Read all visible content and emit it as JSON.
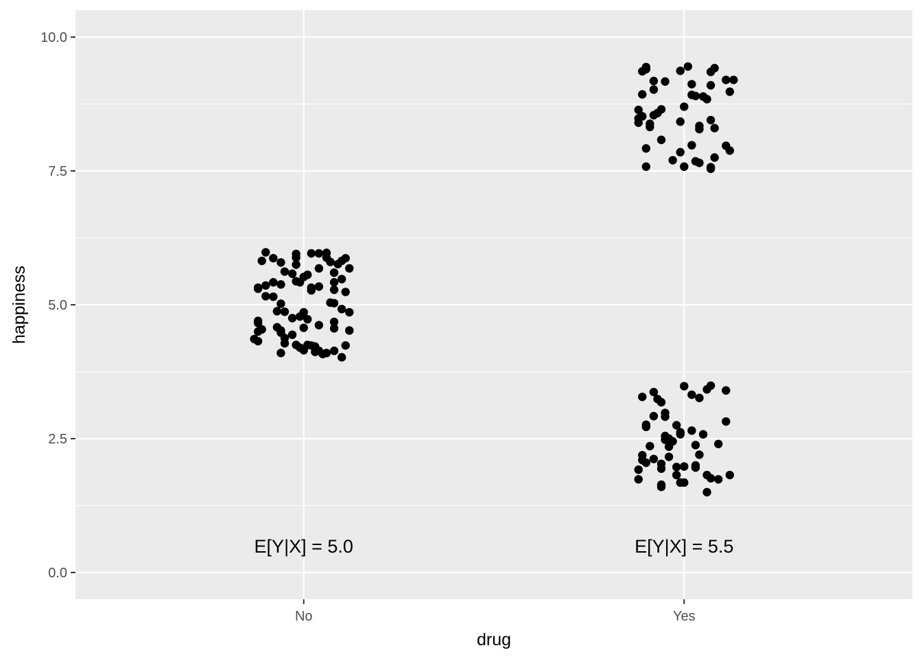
{
  "chart_data": {
    "type": "scatter",
    "title": "",
    "xlabel": "drug",
    "ylabel": "happiness",
    "categories": [
      "No",
      "Yes"
    ],
    "ylim": [
      -0.5,
      10.5
    ],
    "yticks": [
      {
        "value": 0,
        "label": "0.0"
      },
      {
        "value": 2.5,
        "label": "2.5"
      },
      {
        "value": 5,
        "label": "5.0"
      },
      {
        "value": 7.5,
        "label": "7.5"
      },
      {
        "value": 10,
        "label": "10.0"
      }
    ],
    "grid": true,
    "legend": "none",
    "colors": {
      "panel": "#ebebeb",
      "grid": "#ffffff",
      "points": "#000000"
    },
    "annotations": [
      {
        "category": "No",
        "y": 0.5,
        "text": "E[Y|X] = 5.0"
      },
      {
        "category": "Yes",
        "y": 0.5,
        "text": "E[Y|X] = 5.5"
      }
    ],
    "points": [
      {
        "category": "No",
        "y": 5.98,
        "x_jitter": -0.1
      },
      {
        "category": "No",
        "y": 5.87,
        "x_jitter": -0.08
      },
      {
        "category": "No",
        "y": 5.82,
        "x_jitter": -0.11
      },
      {
        "category": "No",
        "y": 5.79,
        "x_jitter": -0.06
      },
      {
        "category": "No",
        "y": 5.62,
        "x_jitter": -0.05
      },
      {
        "category": "No",
        "y": 5.58,
        "x_jitter": -0.03
      },
      {
        "category": "No",
        "y": 5.88,
        "x_jitter": -0.02
      },
      {
        "category": "No",
        "y": 5.95,
        "x_jitter": -0.02
      },
      {
        "category": "No",
        "y": 5.75,
        "x_jitter": -0.02
      },
      {
        "category": "No",
        "y": 5.96,
        "x_jitter": 0.02
      },
      {
        "category": "No",
        "y": 5.96,
        "x_jitter": 0.04
      },
      {
        "category": "No",
        "y": 5.97,
        "x_jitter": 0.06
      },
      {
        "category": "No",
        "y": 5.88,
        "x_jitter": 0.06
      },
      {
        "category": "No",
        "y": 5.8,
        "x_jitter": 0.07
      },
      {
        "category": "No",
        "y": 5.76,
        "x_jitter": 0.09
      },
      {
        "category": "No",
        "y": 5.82,
        "x_jitter": 0.1
      },
      {
        "category": "No",
        "y": 5.87,
        "x_jitter": 0.11
      },
      {
        "category": "No",
        "y": 5.68,
        "x_jitter": 0.12
      },
      {
        "category": "No",
        "y": 5.6,
        "x_jitter": 0.08
      },
      {
        "category": "No",
        "y": 5.68,
        "x_jitter": 0.04
      },
      {
        "category": "No",
        "y": 5.56,
        "x_jitter": 0.01
      },
      {
        "category": "No",
        "y": 5.52,
        "x_jitter": 0.0
      },
      {
        "category": "No",
        "y": 5.48,
        "x_jitter": 0.1
      },
      {
        "category": "No",
        "y": 5.42,
        "x_jitter": 0.08
      },
      {
        "category": "No",
        "y": 5.38,
        "x_jitter": -0.06
      },
      {
        "category": "No",
        "y": 5.42,
        "x_jitter": -0.08
      },
      {
        "category": "No",
        "y": 5.36,
        "x_jitter": -0.1
      },
      {
        "category": "No",
        "y": 5.32,
        "x_jitter": -0.12
      },
      {
        "category": "No",
        "y": 5.3,
        "x_jitter": -0.12
      },
      {
        "category": "No",
        "y": 5.44,
        "x_jitter": -0.02
      },
      {
        "category": "No",
        "y": 5.42,
        "x_jitter": -0.01
      },
      {
        "category": "No",
        "y": 5.32,
        "x_jitter": 0.02
      },
      {
        "category": "No",
        "y": 5.27,
        "x_jitter": 0.02
      },
      {
        "category": "No",
        "y": 5.34,
        "x_jitter": 0.04
      },
      {
        "category": "No",
        "y": 5.28,
        "x_jitter": 0.08
      },
      {
        "category": "No",
        "y": 5.24,
        "x_jitter": 0.11
      },
      {
        "category": "No",
        "y": 5.16,
        "x_jitter": -0.1
      },
      {
        "category": "No",
        "y": 5.15,
        "x_jitter": -0.08
      },
      {
        "category": "No",
        "y": 5.02,
        "x_jitter": -0.06
      },
      {
        "category": "No",
        "y": 5.04,
        "x_jitter": 0.07
      },
      {
        "category": "No",
        "y": 5.03,
        "x_jitter": 0.08
      },
      {
        "category": "No",
        "y": 4.92,
        "x_jitter": 0.1
      },
      {
        "category": "No",
        "y": 4.86,
        "x_jitter": 0.12
      },
      {
        "category": "No",
        "y": 4.88,
        "x_jitter": -0.07
      },
      {
        "category": "No",
        "y": 4.87,
        "x_jitter": -0.05
      },
      {
        "category": "No",
        "y": 4.86,
        "x_jitter": 0.0
      },
      {
        "category": "No",
        "y": 4.78,
        "x_jitter": -0.01
      },
      {
        "category": "No",
        "y": 4.75,
        "x_jitter": -0.03
      },
      {
        "category": "No",
        "y": 4.73,
        "x_jitter": 0.01
      },
      {
        "category": "No",
        "y": 4.7,
        "x_jitter": -0.12
      },
      {
        "category": "No",
        "y": 4.66,
        "x_jitter": -0.12
      },
      {
        "category": "No",
        "y": 4.68,
        "x_jitter": 0.08
      },
      {
        "category": "No",
        "y": 4.62,
        "x_jitter": 0.04
      },
      {
        "category": "No",
        "y": 4.58,
        "x_jitter": -0.07
      },
      {
        "category": "No",
        "y": 4.57,
        "x_jitter": 0.0
      },
      {
        "category": "No",
        "y": 4.56,
        "x_jitter": 0.08
      },
      {
        "category": "No",
        "y": 4.54,
        "x_jitter": -0.11
      },
      {
        "category": "No",
        "y": 4.52,
        "x_jitter": -0.06
      },
      {
        "category": "No",
        "y": 4.5,
        "x_jitter": -0.12
      },
      {
        "category": "No",
        "y": 4.48,
        "x_jitter": -0.06
      },
      {
        "category": "No",
        "y": 4.52,
        "x_jitter": 0.12
      },
      {
        "category": "No",
        "y": 4.44,
        "x_jitter": -0.03
      },
      {
        "category": "No",
        "y": 4.38,
        "x_jitter": -0.05
      },
      {
        "category": "No",
        "y": 4.36,
        "x_jitter": -0.13
      },
      {
        "category": "No",
        "y": 4.32,
        "x_jitter": -0.12
      },
      {
        "category": "No",
        "y": 4.28,
        "x_jitter": -0.05
      },
      {
        "category": "No",
        "y": 4.25,
        "x_jitter": -0.02
      },
      {
        "category": "No",
        "y": 4.25,
        "x_jitter": 0.01
      },
      {
        "category": "No",
        "y": 4.24,
        "x_jitter": 0.02
      },
      {
        "category": "No",
        "y": 4.22,
        "x_jitter": 0.03
      },
      {
        "category": "No",
        "y": 4.24,
        "x_jitter": 0.11
      },
      {
        "category": "No",
        "y": 4.2,
        "x_jitter": -0.01
      },
      {
        "category": "No",
        "y": 4.15,
        "x_jitter": 0.0
      },
      {
        "category": "No",
        "y": 4.12,
        "x_jitter": 0.03
      },
      {
        "category": "No",
        "y": 4.14,
        "x_jitter": 0.04
      },
      {
        "category": "No",
        "y": 4.1,
        "x_jitter": 0.06
      },
      {
        "category": "No",
        "y": 4.08,
        "x_jitter": 0.05
      },
      {
        "category": "No",
        "y": 4.14,
        "x_jitter": 0.08
      },
      {
        "category": "No",
        "y": 4.1,
        "x_jitter": -0.06
      },
      {
        "category": "No",
        "y": 4.02,
        "x_jitter": 0.1
      },
      {
        "category": "Yes",
        "y": 9.44,
        "x_jitter": -0.1
      },
      {
        "category": "Yes",
        "y": 9.4,
        "x_jitter": -0.1
      },
      {
        "category": "Yes",
        "y": 9.36,
        "x_jitter": -0.11
      },
      {
        "category": "Yes",
        "y": 9.45,
        "x_jitter": 0.01
      },
      {
        "category": "Yes",
        "y": 9.37,
        "x_jitter": -0.01
      },
      {
        "category": "Yes",
        "y": 9.42,
        "x_jitter": 0.08
      },
      {
        "category": "Yes",
        "y": 9.35,
        "x_jitter": 0.07
      },
      {
        "category": "Yes",
        "y": 9.2,
        "x_jitter": 0.11
      },
      {
        "category": "Yes",
        "y": 9.2,
        "x_jitter": 0.13
      },
      {
        "category": "Yes",
        "y": 9.18,
        "x_jitter": -0.08
      },
      {
        "category": "Yes",
        "y": 9.17,
        "x_jitter": -0.05
      },
      {
        "category": "Yes",
        "y": 9.12,
        "x_jitter": 0.02
      },
      {
        "category": "Yes",
        "y": 9.1,
        "x_jitter": 0.07
      },
      {
        "category": "Yes",
        "y": 9.02,
        "x_jitter": -0.08
      },
      {
        "category": "Yes",
        "y": 8.98,
        "x_jitter": 0.12
      },
      {
        "category": "Yes",
        "y": 8.93,
        "x_jitter": -0.11
      },
      {
        "category": "Yes",
        "y": 8.92,
        "x_jitter": 0.02
      },
      {
        "category": "Yes",
        "y": 8.9,
        "x_jitter": 0.03
      },
      {
        "category": "Yes",
        "y": 8.89,
        "x_jitter": 0.05
      },
      {
        "category": "Yes",
        "y": 8.84,
        "x_jitter": 0.06
      },
      {
        "category": "Yes",
        "y": 8.7,
        "x_jitter": 0.0
      },
      {
        "category": "Yes",
        "y": 8.65,
        "x_jitter": -0.06
      },
      {
        "category": "Yes",
        "y": 8.64,
        "x_jitter": -0.12
      },
      {
        "category": "Yes",
        "y": 8.58,
        "x_jitter": -0.07
      },
      {
        "category": "Yes",
        "y": 8.54,
        "x_jitter": -0.08
      },
      {
        "category": "Yes",
        "y": 8.52,
        "x_jitter": -0.11
      },
      {
        "category": "Yes",
        "y": 8.48,
        "x_jitter": -0.12
      },
      {
        "category": "Yes",
        "y": 8.45,
        "x_jitter": 0.07
      },
      {
        "category": "Yes",
        "y": 8.42,
        "x_jitter": -0.01
      },
      {
        "category": "Yes",
        "y": 8.4,
        "x_jitter": -0.12
      },
      {
        "category": "Yes",
        "y": 8.38,
        "x_jitter": -0.09
      },
      {
        "category": "Yes",
        "y": 8.34,
        "x_jitter": 0.04
      },
      {
        "category": "Yes",
        "y": 8.32,
        "x_jitter": -0.09
      },
      {
        "category": "Yes",
        "y": 8.3,
        "x_jitter": 0.08
      },
      {
        "category": "Yes",
        "y": 8.28,
        "x_jitter": 0.04
      },
      {
        "category": "Yes",
        "y": 8.08,
        "x_jitter": -0.06
      },
      {
        "category": "Yes",
        "y": 7.98,
        "x_jitter": 0.02
      },
      {
        "category": "Yes",
        "y": 7.97,
        "x_jitter": 0.11
      },
      {
        "category": "Yes",
        "y": 7.92,
        "x_jitter": -0.1
      },
      {
        "category": "Yes",
        "y": 7.88,
        "x_jitter": 0.12
      },
      {
        "category": "Yes",
        "y": 7.85,
        "x_jitter": -0.01
      },
      {
        "category": "Yes",
        "y": 7.75,
        "x_jitter": 0.08
      },
      {
        "category": "Yes",
        "y": 7.7,
        "x_jitter": -0.03
      },
      {
        "category": "Yes",
        "y": 7.68,
        "x_jitter": 0.03
      },
      {
        "category": "Yes",
        "y": 7.65,
        "x_jitter": 0.04
      },
      {
        "category": "Yes",
        "y": 7.58,
        "x_jitter": -0.1
      },
      {
        "category": "Yes",
        "y": 7.58,
        "x_jitter": 0.0
      },
      {
        "category": "Yes",
        "y": 7.57,
        "x_jitter": 0.07
      },
      {
        "category": "Yes",
        "y": 7.54,
        "x_jitter": 0.07
      },
      {
        "category": "Yes",
        "y": 3.48,
        "x_jitter": 0.0
      },
      {
        "category": "Yes",
        "y": 3.49,
        "x_jitter": 0.07
      },
      {
        "category": "Yes",
        "y": 3.42,
        "x_jitter": 0.06
      },
      {
        "category": "Yes",
        "y": 3.4,
        "x_jitter": 0.11
      },
      {
        "category": "Yes",
        "y": 3.37,
        "x_jitter": -0.08
      },
      {
        "category": "Yes",
        "y": 3.32,
        "x_jitter": 0.02
      },
      {
        "category": "Yes",
        "y": 3.28,
        "x_jitter": -0.11
      },
      {
        "category": "Yes",
        "y": 3.26,
        "x_jitter": 0.04
      },
      {
        "category": "Yes",
        "y": 3.24,
        "x_jitter": -0.07
      },
      {
        "category": "Yes",
        "y": 3.18,
        "x_jitter": -0.06
      },
      {
        "category": "Yes",
        "y": 2.98,
        "x_jitter": -0.05
      },
      {
        "category": "Yes",
        "y": 2.92,
        "x_jitter": -0.08
      },
      {
        "category": "Yes",
        "y": 2.91,
        "x_jitter": -0.05
      },
      {
        "category": "Yes",
        "y": 2.82,
        "x_jitter": 0.11
      },
      {
        "category": "Yes",
        "y": 2.76,
        "x_jitter": -0.1
      },
      {
        "category": "Yes",
        "y": 2.75,
        "x_jitter": -0.02
      },
      {
        "category": "Yes",
        "y": 2.72,
        "x_jitter": -0.1
      },
      {
        "category": "Yes",
        "y": 2.65,
        "x_jitter": 0.02
      },
      {
        "category": "Yes",
        "y": 2.62,
        "x_jitter": -0.01
      },
      {
        "category": "Yes",
        "y": 2.58,
        "x_jitter": -0.01
      },
      {
        "category": "Yes",
        "y": 2.58,
        "x_jitter": 0.05
      },
      {
        "category": "Yes",
        "y": 2.55,
        "x_jitter": -0.05
      },
      {
        "category": "Yes",
        "y": 2.5,
        "x_jitter": -0.04
      },
      {
        "category": "Yes",
        "y": 2.48,
        "x_jitter": -0.05
      },
      {
        "category": "Yes",
        "y": 2.45,
        "x_jitter": -0.03
      },
      {
        "category": "Yes",
        "y": 2.4,
        "x_jitter": 0.09
      },
      {
        "category": "Yes",
        "y": 2.38,
        "x_jitter": 0.03
      },
      {
        "category": "Yes",
        "y": 2.36,
        "x_jitter": -0.09
      },
      {
        "category": "Yes",
        "y": 2.35,
        "x_jitter": -0.04
      },
      {
        "category": "Yes",
        "y": 2.2,
        "x_jitter": 0.04
      },
      {
        "category": "Yes",
        "y": 2.19,
        "x_jitter": -0.11
      },
      {
        "category": "Yes",
        "y": 2.16,
        "x_jitter": -0.04
      },
      {
        "category": "Yes",
        "y": 2.12,
        "x_jitter": -0.08
      },
      {
        "category": "Yes",
        "y": 2.1,
        "x_jitter": -0.11
      },
      {
        "category": "Yes",
        "y": 2.05,
        "x_jitter": -0.1
      },
      {
        "category": "Yes",
        "y": 2.03,
        "x_jitter": -0.06
      },
      {
        "category": "Yes",
        "y": 2.0,
        "x_jitter": 0.03
      },
      {
        "category": "Yes",
        "y": 1.98,
        "x_jitter": 0.0
      },
      {
        "category": "Yes",
        "y": 1.97,
        "x_jitter": -0.02
      },
      {
        "category": "Yes",
        "y": 1.96,
        "x_jitter": 0.03
      },
      {
        "category": "Yes",
        "y": 1.94,
        "x_jitter": -0.06
      },
      {
        "category": "Yes",
        "y": 1.92,
        "x_jitter": -0.12
      },
      {
        "category": "Yes",
        "y": 1.82,
        "x_jitter": -0.02
      },
      {
        "category": "Yes",
        "y": 1.82,
        "x_jitter": 0.06
      },
      {
        "category": "Yes",
        "y": 1.82,
        "x_jitter": 0.12
      },
      {
        "category": "Yes",
        "y": 1.76,
        "x_jitter": 0.07
      },
      {
        "category": "Yes",
        "y": 1.74,
        "x_jitter": -0.12
      },
      {
        "category": "Yes",
        "y": 1.74,
        "x_jitter": 0.09
      },
      {
        "category": "Yes",
        "y": 1.68,
        "x_jitter": -0.01
      },
      {
        "category": "Yes",
        "y": 1.68,
        "x_jitter": 0.0
      },
      {
        "category": "Yes",
        "y": 1.64,
        "x_jitter": -0.06
      },
      {
        "category": "Yes",
        "y": 1.6,
        "x_jitter": -0.06
      },
      {
        "category": "Yes",
        "y": 1.5,
        "x_jitter": 0.06
      }
    ]
  }
}
